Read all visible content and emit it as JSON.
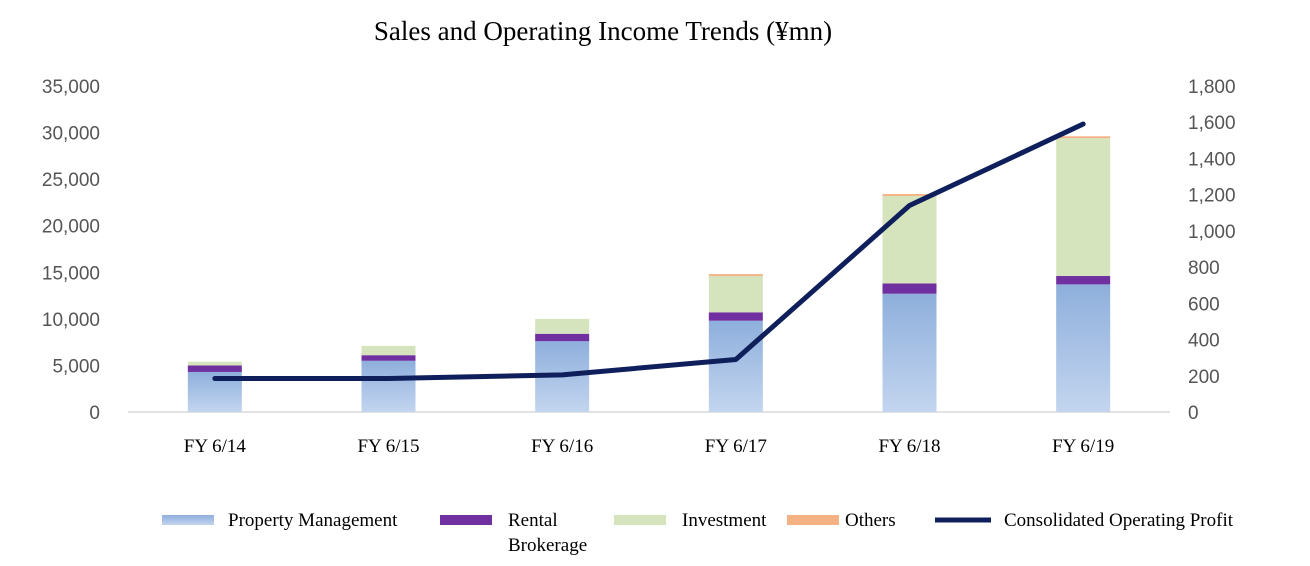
{
  "chart_data": {
    "type": "bar",
    "stacked": true,
    "title": "Sales and Operating Income  Trends (¥mn)",
    "categories": [
      "FY 6/14",
      "FY 6/15",
      "FY 6/16",
      "FY 6/17",
      "FY 6/18",
      "FY 6/19"
    ],
    "series": [
      {
        "name": "Property Management",
        "type": "bar",
        "axis": "left",
        "color": "#a9c2e6",
        "values": [
          4300,
          5500,
          7600,
          9800,
          12700,
          13700
        ]
      },
      {
        "name": "Rental Brokerage",
        "type": "bar",
        "axis": "left",
        "color": "#7030a0",
        "values": [
          700,
          600,
          800,
          900,
          1100,
          900
        ]
      },
      {
        "name": "Investment",
        "type": "bar",
        "axis": "left",
        "color": "#d6e4bd",
        "values": [
          400,
          1000,
          1600,
          3900,
          9400,
          14800
        ]
      },
      {
        "name": "Others",
        "type": "bar",
        "axis": "left",
        "color": "#f4b183",
        "values": [
          0,
          0,
          0,
          200,
          200,
          200
        ]
      },
      {
        "name": "Consolidated Operating Profit",
        "type": "line",
        "axis": "right",
        "color": "#0f1f5c",
        "values": [
          185,
          185,
          205,
          290,
          1140,
          1590
        ]
      }
    ],
    "y_left": {
      "min": 0,
      "max": 35000,
      "step": 5000,
      "ticks": [
        "0",
        "5,000",
        "10,000",
        "15,000",
        "20,000",
        "25,000",
        "30,000",
        "35,000"
      ]
    },
    "y_right": {
      "min": 0,
      "max": 1800,
      "step": 200,
      "ticks": [
        "0",
        "200",
        "400",
        "600",
        "800",
        "1,000",
        "1,200",
        "1,400",
        "1,600",
        "1,800"
      ]
    },
    "legend": {
      "position": "bottom",
      "entries": [
        {
          "lines": [
            "Property Management"
          ]
        },
        {
          "lines": [
            "Rental",
            "Brokerage"
          ]
        },
        {
          "lines": [
            "Investment"
          ]
        },
        {
          "lines": [
            "Others"
          ]
        },
        {
          "lines": [
            "Consolidated Operating Profit"
          ]
        }
      ]
    },
    "grid": false
  }
}
